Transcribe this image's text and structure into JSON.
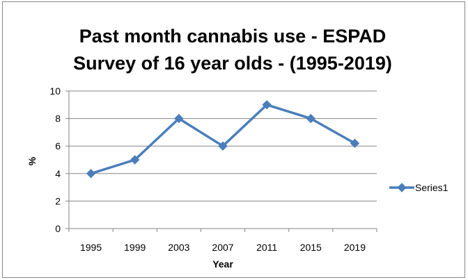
{
  "chart_data": {
    "type": "line",
    "title_lines": [
      "Past month cannabis use - ESPAD",
      "Survey of 16 year olds - (1995-2019)"
    ],
    "xlabel": "Year",
    "ylabel": "%",
    "categories": [
      "1995",
      "1999",
      "2003",
      "2007",
      "2011",
      "2015",
      "2019"
    ],
    "ylim": [
      0,
      10
    ],
    "yticks": [
      "0",
      "2",
      "4",
      "6",
      "8",
      "10"
    ],
    "grid": "horizontal",
    "legend_position": "right",
    "series": [
      {
        "name": "Series1",
        "values": [
          4,
          5,
          8,
          6,
          9,
          8,
          6.2
        ],
        "color": "#4a7ebb",
        "marker": "diamond"
      }
    ]
  }
}
